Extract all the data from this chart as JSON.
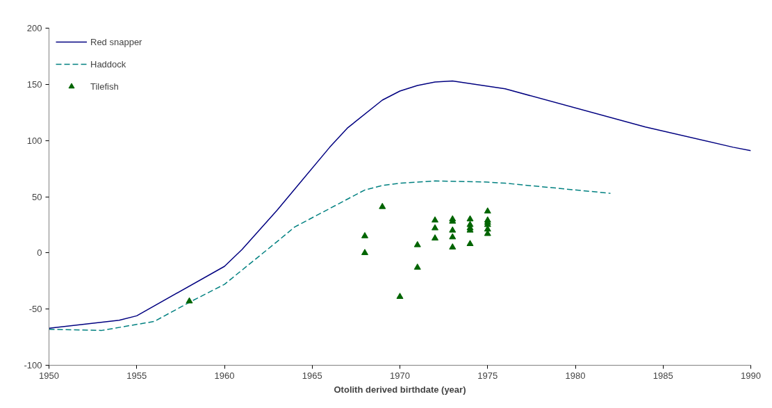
{
  "chart_data": {
    "type": "line",
    "xlabel": "Otolith derived birthdate (year)",
    "xlim": [
      1950,
      1990
    ],
    "xticks": [
      1950,
      1955,
      1960,
      1965,
      1970,
      1975,
      1980,
      1985,
      1990
    ],
    "ylim": [
      -100,
      200
    ],
    "yticks": [
      -100,
      -50,
      0,
      50,
      100,
      150,
      200
    ],
    "grid": false,
    "legend": "top left",
    "series": [
      {
        "name": "Red snapper",
        "color": "#000080",
        "line_style": "solid",
        "marker": "none",
        "x": [
          1950,
          1954,
          1955,
          1960,
          1961,
          1963,
          1966,
          1967,
          1969,
          1970,
          1971,
          1972,
          1973,
          1976,
          1984,
          1989,
          1990
        ],
        "values": [
          -67,
          -60,
          -56,
          -12,
          3,
          38,
          94,
          111,
          136,
          144,
          149,
          152,
          153,
          146,
          112,
          94,
          91
        ]
      },
      {
        "name": "Haddock",
        "color": "#008080",
        "line_style": "dashed",
        "marker": "none",
        "x": [
          1950,
          1953,
          1956,
          1958,
          1960,
          1963,
          1964,
          1968,
          1969,
          1970,
          1972,
          1975,
          1976,
          1982
        ],
        "values": [
          -68,
          -69,
          -61,
          -44,
          -28,
          10,
          23,
          56,
          60,
          62,
          64,
          63,
          62,
          53
        ]
      },
      {
        "name": "Tilefish",
        "type": "scatter",
        "color": "#006400",
        "marker": "triangle",
        "x": [
          1958,
          1968,
          1968,
          1969,
          1970,
          1971,
          1971,
          1972,
          1972,
          1972,
          1973,
          1973,
          1973,
          1973,
          1973,
          1974,
          1974,
          1974,
          1974,
          1974,
          1975,
          1975,
          1975,
          1975,
          1975,
          1975
        ],
        "values": [
          -43,
          15,
          0,
          41,
          -39,
          7,
          -13,
          29,
          22,
          13,
          30,
          28,
          20,
          14,
          5,
          30,
          25,
          22,
          20,
          8,
          37,
          29,
          27,
          25,
          21,
          17
        ]
      }
    ]
  }
}
